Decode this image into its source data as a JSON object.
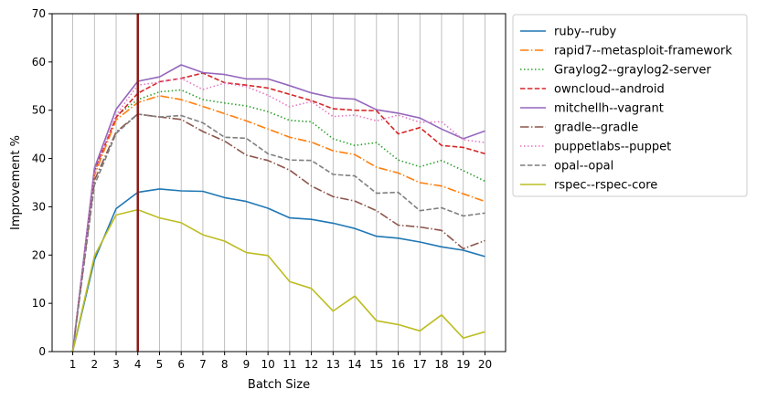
{
  "chart_data": {
    "type": "line",
    "title": "",
    "xlabel": "Batch Size",
    "ylabel": "Improvement %",
    "x": [
      1,
      2,
      3,
      4,
      5,
      6,
      7,
      8,
      9,
      10,
      11,
      12,
      13,
      14,
      15,
      16,
      17,
      18,
      19,
      20
    ],
    "xlim": [
      0.05,
      20.95
    ],
    "ylim": [
      0,
      70
    ],
    "yticks": [
      0,
      10,
      20,
      30,
      40,
      50,
      60,
      70
    ],
    "grid": "vertical",
    "legend": "outside-right",
    "marker_line": {
      "x": 4,
      "color": "#8b1a1a"
    },
    "series": [
      {
        "name": "ruby--ruby",
        "color": "#1f77b4",
        "dash": "solid",
        "values": [
          0,
          19.0,
          29.6,
          33.0,
          33.7,
          33.3,
          33.2,
          31.9,
          31.1,
          29.7,
          27.7,
          27.4,
          26.6,
          25.5,
          23.9,
          23.5,
          22.7,
          21.7,
          21.0,
          19.7
        ]
      },
      {
        "name": "rapid7--metasploit-framework",
        "color": "#ff7f0e",
        "dash": "dashdot",
        "values": [
          0,
          36.5,
          48.0,
          51.6,
          53.0,
          52.2,
          50.8,
          49.3,
          47.8,
          46.1,
          44.4,
          43.4,
          41.6,
          40.8,
          38.2,
          37.0,
          35.0,
          34.3,
          32.7,
          31.1
        ]
      },
      {
        "name": "Graylog2--graylog2-server",
        "color": "#2ca02c",
        "dash": "dotted",
        "values": [
          0,
          37.0,
          48.8,
          52.2,
          53.8,
          54.2,
          52.2,
          51.5,
          50.9,
          49.7,
          47.9,
          47.6,
          44.1,
          42.7,
          43.3,
          39.7,
          38.3,
          39.6,
          37.5,
          35.3
        ]
      },
      {
        "name": "owncloud--android",
        "color": "#d62728",
        "dash": "dashed",
        "values": [
          0,
          37.5,
          48.5,
          53.5,
          55.9,
          56.6,
          57.7,
          55.7,
          55.2,
          54.6,
          53.3,
          52.0,
          50.3,
          50.0,
          49.9,
          45.1,
          46.4,
          42.7,
          42.3,
          41.0
        ]
      },
      {
        "name": "mitchellh--vagrant",
        "color": "#9467bd",
        "dash": "solid",
        "values": [
          0,
          38.0,
          50.2,
          56.0,
          56.9,
          59.4,
          57.8,
          57.4,
          56.5,
          56.5,
          55.1,
          53.6,
          52.6,
          52.3,
          50.1,
          49.4,
          48.4,
          46.1,
          44.1,
          45.7
        ]
      },
      {
        "name": "gradle--gradle",
        "color": "#8c564b",
        "dash": "dashdot",
        "values": [
          0,
          35.5,
          45.5,
          49.2,
          48.6,
          48.1,
          45.6,
          43.6,
          40.7,
          39.6,
          37.6,
          34.3,
          32.1,
          31.2,
          29.2,
          26.2,
          25.8,
          25.1,
          21.3,
          23.0
        ]
      },
      {
        "name": "puppetlabs--puppet",
        "color": "#e377c2",
        "dash": "dotted",
        "values": [
          0,
          37.0,
          49.0,
          55.2,
          55.8,
          56.6,
          54.3,
          55.6,
          54.9,
          53.1,
          50.7,
          51.8,
          48.7,
          49.0,
          47.8,
          49.0,
          47.5,
          47.6,
          43.9,
          43.3
        ]
      },
      {
        "name": "opal--opal",
        "color": "#7f7f7f",
        "dash": "dashed",
        "values": [
          0,
          34.5,
          45.2,
          49.2,
          48.6,
          48.9,
          47.4,
          44.4,
          44.2,
          41.0,
          39.7,
          39.6,
          36.7,
          36.4,
          32.8,
          33.0,
          29.2,
          29.8,
          28.1,
          28.7
        ]
      },
      {
        "name": "rspec--rspec-core",
        "color": "#bcbd22",
        "dash": "solid",
        "values": [
          0,
          19.8,
          28.3,
          29.4,
          27.7,
          26.7,
          24.2,
          22.9,
          20.5,
          19.9,
          14.5,
          13.1,
          8.4,
          11.5,
          6.4,
          5.6,
          4.3,
          7.6,
          2.8,
          4.1
        ]
      }
    ]
  }
}
